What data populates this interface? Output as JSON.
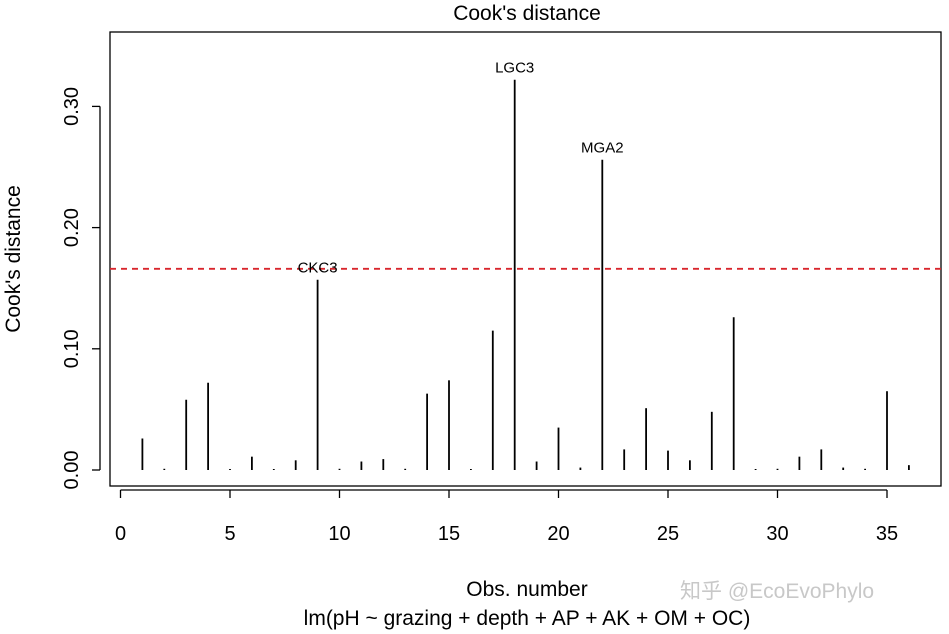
{
  "chart_data": {
    "type": "bar",
    "title": "Cook's distance",
    "xlabel": "Obs. number",
    "ylabel": "Cook's distance",
    "subtitle": "lm(pH ~ grazing + depth + AP + AK + OM + OC)",
    "xlim": [
      0,
      36
    ],
    "ylim": [
      0,
      0.35
    ],
    "x_ticks": [
      0,
      5,
      10,
      15,
      20,
      25,
      30,
      35
    ],
    "y_ticks": [
      0.0,
      0.1,
      0.2,
      0.3
    ],
    "y_tick_labels": [
      "0.00",
      "0.10",
      "0.20",
      "0.30"
    ],
    "x": [
      1,
      2,
      3,
      4,
      5,
      6,
      7,
      8,
      9,
      10,
      11,
      12,
      13,
      14,
      15,
      16,
      17,
      18,
      19,
      20,
      21,
      22,
      23,
      24,
      25,
      26,
      27,
      28,
      29,
      30,
      31,
      32,
      33,
      34,
      35,
      36
    ],
    "values": [
      0.026,
      0.001,
      0.058,
      0.072,
      0.0005,
      0.011,
      0.0005,
      0.008,
      0.157,
      0.001,
      0.007,
      0.009,
      0.001,
      0.063,
      0.074,
      0.0005,
      0.115,
      0.322,
      0.007,
      0.035,
      0.002,
      0.256,
      0.017,
      0.051,
      0.016,
      0.008,
      0.048,
      0.126,
      0.0005,
      0.001,
      0.011,
      0.017,
      0.002,
      0.001,
      0.065,
      0.004
    ],
    "threshold": 0.166,
    "threshold_style": "dashed",
    "threshold_color": "#d9262d",
    "annotations": [
      {
        "obs": 9,
        "label": "CKC3"
      },
      {
        "obs": 18,
        "label": "LGC3"
      },
      {
        "obs": 22,
        "label": "MGA2"
      }
    ]
  },
  "watermark": "知乎 @EcoEvoPhylo"
}
